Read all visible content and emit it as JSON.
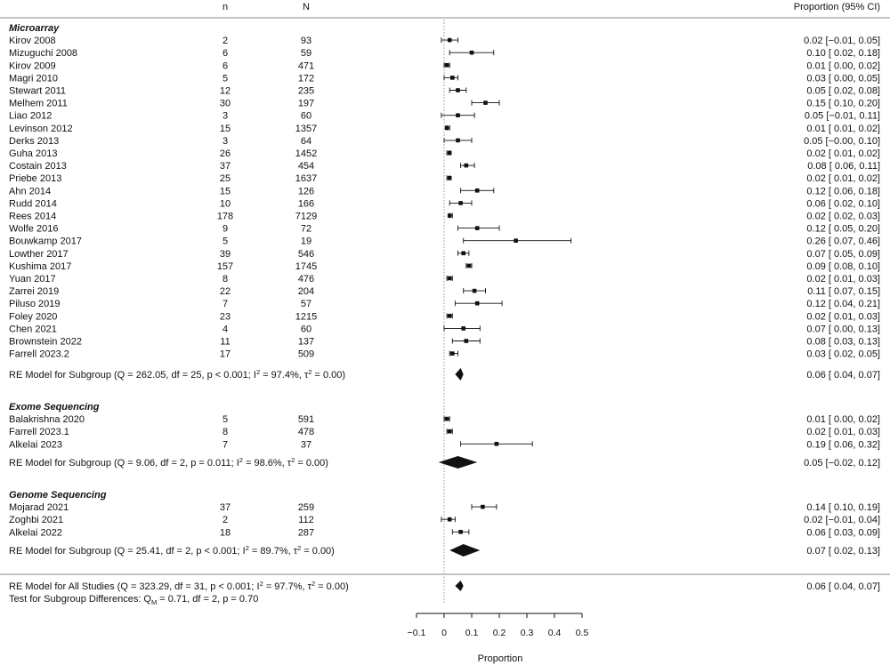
{
  "chart_data": {
    "type": "forest",
    "headers": {
      "n": "n",
      "N": "N",
      "ci": "Proportion (95% CI)"
    },
    "xlabel": "Proportion",
    "xlim": [
      -0.1,
      0.5
    ],
    "xticks": [
      -0.1,
      0,
      0.1,
      0.2,
      0.3,
      0.4,
      0.5
    ],
    "xtick_labels": [
      "−0.1",
      "0",
      "0.1",
      "0.2",
      "0.3",
      "0.4",
      "0.5"
    ],
    "reference_line": 0,
    "groups": [
      {
        "name": "Microarray",
        "studies": [
          {
            "study": "Kirov 2008",
            "n": "2",
            "N": "93",
            "est": 0.02,
            "lo": -0.01,
            "hi": 0.05,
            "ci": "0.02 [−0.01, 0.05]"
          },
          {
            "study": "Mizuguchi 2008",
            "n": "6",
            "N": "59",
            "est": 0.1,
            "lo": 0.02,
            "hi": 0.18,
            "ci": "0.10 [ 0.02, 0.18]"
          },
          {
            "study": "Kirov 2009",
            "n": "6",
            "N": "471",
            "est": 0.01,
            "lo": 0.0,
            "hi": 0.02,
            "ci": "0.01 [ 0.00, 0.02]"
          },
          {
            "study": "Magri 2010",
            "n": "5",
            "N": "172",
            "est": 0.03,
            "lo": 0.0,
            "hi": 0.05,
            "ci": "0.03 [ 0.00, 0.05]"
          },
          {
            "study": "Stewart 2011",
            "n": "12",
            "N": "235",
            "est": 0.05,
            "lo": 0.02,
            "hi": 0.08,
            "ci": "0.05 [ 0.02, 0.08]"
          },
          {
            "study": "Melhem 2011",
            "n": "30",
            "N": "197",
            "est": 0.15,
            "lo": 0.1,
            "hi": 0.2,
            "ci": "0.15 [ 0.10, 0.20]"
          },
          {
            "study": "Liao 2012",
            "n": "3",
            "N": "60",
            "est": 0.05,
            "lo": -0.01,
            "hi": 0.11,
            "ci": "0.05 [−0.01, 0.11]"
          },
          {
            "study": "Levinson 2012",
            "n": "15",
            "N": "1357",
            "est": 0.01,
            "lo": 0.01,
            "hi": 0.02,
            "ci": "0.01 [ 0.01, 0.02]"
          },
          {
            "study": "Derks 2013",
            "n": "3",
            "N": "64",
            "est": 0.05,
            "lo": -0.0,
            "hi": 0.1,
            "ci": "0.05 [−0.00, 0.10]"
          },
          {
            "study": "Guha 2013",
            "n": "26",
            "N": "1452",
            "est": 0.02,
            "lo": 0.01,
            "hi": 0.02,
            "ci": "0.02 [ 0.01, 0.02]"
          },
          {
            "study": "Costain 2013",
            "n": "37",
            "N": "454",
            "est": 0.08,
            "lo": 0.06,
            "hi": 0.11,
            "ci": "0.08 [ 0.06, 0.11]"
          },
          {
            "study": "Priebe 2013",
            "n": "25",
            "N": "1637",
            "est": 0.02,
            "lo": 0.01,
            "hi": 0.02,
            "ci": "0.02 [ 0.01, 0.02]"
          },
          {
            "study": "Ahn 2014",
            "n": "15",
            "N": "126",
            "est": 0.12,
            "lo": 0.06,
            "hi": 0.18,
            "ci": "0.12 [ 0.06, 0.18]"
          },
          {
            "study": "Rudd 2014",
            "n": "10",
            "N": "166",
            "est": 0.06,
            "lo": 0.02,
            "hi": 0.1,
            "ci": "0.06 [ 0.02, 0.10]"
          },
          {
            "study": "Rees 2014",
            "n": "178",
            "N": "7129",
            "est": 0.02,
            "lo": 0.02,
            "hi": 0.03,
            "ci": "0.02 [ 0.02, 0.03]"
          },
          {
            "study": "Wolfe 2016",
            "n": "9",
            "N": "72",
            "est": 0.12,
            "lo": 0.05,
            "hi": 0.2,
            "ci": "0.12 [ 0.05, 0.20]"
          },
          {
            "study": "Bouwkamp 2017",
            "n": "5",
            "N": "19",
            "est": 0.26,
            "lo": 0.07,
            "hi": 0.46,
            "ci": "0.26 [ 0.07, 0.46]"
          },
          {
            "study": "Lowther 2017",
            "n": "39",
            "N": "546",
            "est": 0.07,
            "lo": 0.05,
            "hi": 0.09,
            "ci": "0.07 [ 0.05, 0.09]"
          },
          {
            "study": "Kushima 2017",
            "n": "157",
            "N": "1745",
            "est": 0.09,
            "lo": 0.08,
            "hi": 0.1,
            "ci": "0.09 [ 0.08, 0.10]"
          },
          {
            "study": "Yuan 2017",
            "n": "8",
            "N": "476",
            "est": 0.02,
            "lo": 0.01,
            "hi": 0.03,
            "ci": "0.02 [ 0.01, 0.03]"
          },
          {
            "study": "Zarrei 2019",
            "n": "22",
            "N": "204",
            "est": 0.11,
            "lo": 0.07,
            "hi": 0.15,
            "ci": "0.11 [ 0.07, 0.15]"
          },
          {
            "study": "Piluso 2019",
            "n": "7",
            "N": "57",
            "est": 0.12,
            "lo": 0.04,
            "hi": 0.21,
            "ci": "0.12 [ 0.04, 0.21]"
          },
          {
            "study": "Foley 2020",
            "n": "23",
            "N": "1215",
            "est": 0.02,
            "lo": 0.01,
            "hi": 0.03,
            "ci": "0.02 [ 0.01, 0.03]"
          },
          {
            "study": "Chen 2021",
            "n": "4",
            "N": "60",
            "est": 0.07,
            "lo": 0.0,
            "hi": 0.13,
            "ci": "0.07 [ 0.00, 0.13]"
          },
          {
            "study": "Brownstein 2022",
            "n": "11",
            "N": "137",
            "est": 0.08,
            "lo": 0.03,
            "hi": 0.13,
            "ci": "0.08 [ 0.03, 0.13]"
          },
          {
            "study": "Farrell 2023.2",
            "n": "17",
            "N": "509",
            "est": 0.03,
            "lo": 0.02,
            "hi": 0.05,
            "ci": "0.03 [ 0.02, 0.05]"
          }
        ],
        "summary": {
          "label_pre": "RE Model for Subgroup (Q = 262.05, df = 25, p < 0.001; I",
          "label_mid": " = 97.4%, τ",
          "label_post": " = 0.00)",
          "est": 0.06,
          "lo": 0.04,
          "hi": 0.07,
          "ci": "0.06 [ 0.04, 0.07]"
        }
      },
      {
        "name": "Exome Sequencing",
        "studies": [
          {
            "study": "Balakrishna 2020",
            "n": "5",
            "N": "591",
            "est": 0.01,
            "lo": 0.0,
            "hi": 0.02,
            "ci": "0.01 [ 0.00, 0.02]"
          },
          {
            "study": "Farrell 2023.1",
            "n": "8",
            "N": "478",
            "est": 0.02,
            "lo": 0.01,
            "hi": 0.03,
            "ci": "0.02 [ 0.01, 0.03]"
          },
          {
            "study": "Alkelai 2023",
            "n": "7",
            "N": "37",
            "est": 0.19,
            "lo": 0.06,
            "hi": 0.32,
            "ci": "0.19 [ 0.06, 0.32]"
          }
        ],
        "summary": {
          "label_pre": "RE Model for Subgroup (Q = 9.06, df = 2, p = 0.011; I",
          "label_mid": " = 98.6%, τ",
          "label_post": " = 0.00)",
          "est": 0.05,
          "lo": -0.02,
          "hi": 0.12,
          "ci": "0.05 [−0.02, 0.12]"
        }
      },
      {
        "name": "Genome Sequencing",
        "studies": [
          {
            "study": "Mojarad 2021",
            "n": "37",
            "N": "259",
            "est": 0.14,
            "lo": 0.1,
            "hi": 0.19,
            "ci": "0.14 [ 0.10, 0.19]"
          },
          {
            "study": "Zoghbi 2021",
            "n": "2",
            "N": "112",
            "est": 0.02,
            "lo": -0.01,
            "hi": 0.04,
            "ci": "0.02 [−0.01, 0.04]"
          },
          {
            "study": "Alkelai 2022",
            "n": "18",
            "N": "287",
            "est": 0.06,
            "lo": 0.03,
            "hi": 0.09,
            "ci": "0.06 [ 0.03, 0.09]"
          }
        ],
        "summary": {
          "label_pre": "RE Model for Subgroup (Q = 25.41, df = 2, p < 0.001; I",
          "label_mid": " = 89.7%, τ",
          "label_post": " = 0.00)",
          "est": 0.07,
          "lo": 0.02,
          "hi": 0.13,
          "ci": "0.07 [ 0.02, 0.13]"
        }
      }
    ],
    "overall": {
      "label_pre": "RE Model for All Studies (Q = 323.29, df = 31, p < 0.001; I",
      "label_mid": " = 97.7%, τ",
      "label_post": " = 0.00)",
      "est": 0.06,
      "lo": 0.04,
      "hi": 0.07,
      "ci": "0.06 [ 0.04, 0.07]"
    },
    "subgroup_test": {
      "pre": "Test for Subgroup Differences: Q",
      "sub": "M",
      "post": " = 0.71, df = 2, p = 0.70"
    },
    "superscript": "2"
  }
}
